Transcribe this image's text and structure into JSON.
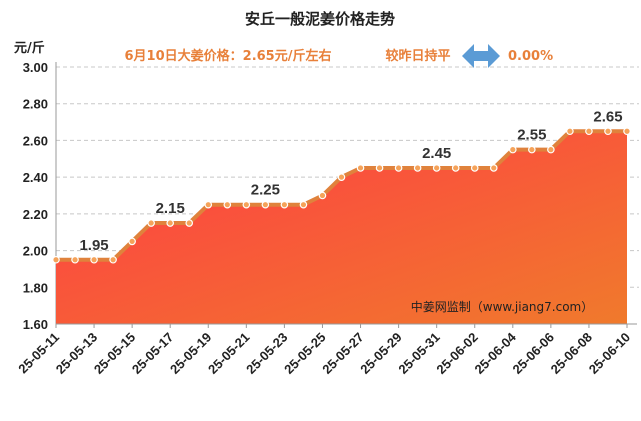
{
  "chart_data": {
    "type": "area",
    "title": "安丘一般泥姜价格走势",
    "subtitle": "6月10日大姜价格：2.65元/斤左右",
    "change_label": "较昨日持平",
    "change_value": "0.00%",
    "unit": "元/斤",
    "ylim": [
      1.6,
      3.0
    ],
    "yticks": [
      "3.00",
      "2.80",
      "2.60",
      "2.40",
      "2.20",
      "2.00",
      "1.80",
      "1.60"
    ],
    "x_tick_labels": [
      "25-05-11",
      "25-05-13",
      "25-05-15",
      "25-05-17",
      "25-05-19",
      "25-05-21",
      "25-05-23",
      "25-05-25",
      "25-05-27",
      "25-05-29",
      "25-05-31",
      "25-06-02",
      "25-06-04",
      "25-06-06",
      "25-06-08",
      "25-06-10"
    ],
    "x": [
      "25-05-11",
      "25-05-12",
      "25-05-13",
      "25-05-14",
      "25-05-15",
      "25-05-16",
      "25-05-17",
      "25-05-18",
      "25-05-19",
      "25-05-20",
      "25-05-21",
      "25-05-22",
      "25-05-23",
      "25-05-24",
      "25-05-25",
      "25-05-26",
      "25-05-27",
      "25-05-28",
      "25-05-29",
      "25-05-30",
      "25-05-31",
      "25-06-01",
      "25-06-02",
      "25-06-03",
      "25-06-04",
      "25-06-05",
      "25-06-06",
      "25-06-07",
      "25-06-08",
      "25-06-09",
      "25-06-10"
    ],
    "values": [
      1.95,
      1.95,
      1.95,
      1.95,
      2.05,
      2.15,
      2.15,
      2.15,
      2.25,
      2.25,
      2.25,
      2.25,
      2.25,
      2.25,
      2.3,
      2.4,
      2.45,
      2.45,
      2.45,
      2.45,
      2.45,
      2.45,
      2.45,
      2.45,
      2.55,
      2.55,
      2.55,
      2.65,
      2.65,
      2.65,
      2.65
    ],
    "data_labels": [
      {
        "x": "25-05-13",
        "text": "1.95"
      },
      {
        "x": "25-05-17",
        "text": "2.15"
      },
      {
        "x": "25-05-22",
        "text": "2.25"
      },
      {
        "x": "25-05-31",
        "text": "2.45"
      },
      {
        "x": "25-06-05",
        "text": "2.55"
      },
      {
        "x": "25-06-09",
        "text": "2.65"
      }
    ],
    "watermark": "中姜网监制（www.jiang7.com）",
    "grid": true,
    "colors": {
      "fill_top": "#ff3b45",
      "fill_bottom": "#f07a2c",
      "line": "#e0823c",
      "marker": "#f5a35a",
      "accent": "#e8803a",
      "arrow": "#5b9bd5"
    }
  }
}
